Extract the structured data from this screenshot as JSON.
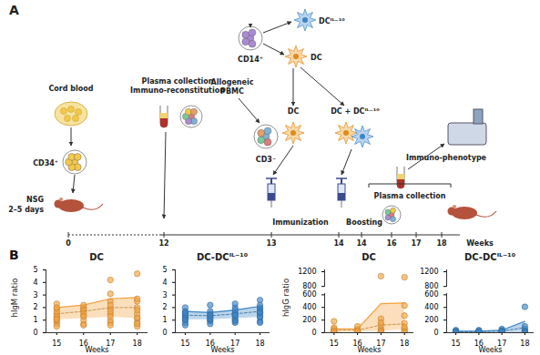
{
  "panel_a": {
    "label": "A",
    "labels": {
      "cord_blood": "Cord blood",
      "cd34": "CD34⁺",
      "nsg": "NSG",
      "days": "2–5 days",
      "plasma_collection": "Plasma collection",
      "immuno_reconstitution": "Immuno-reconstitution",
      "allogeneic": "Allogeneic",
      "pbmc": "PBMC",
      "cd14": "CD14⁺",
      "dc_il10": "DCᴵᴸ⁻¹⁰",
      "dc": "DC",
      "cd3": "CD3⁻",
      "dc_boost": "DC",
      "dc_dc_il10": "DC + DCᴵᴸ⁻¹⁰",
      "immunization": "Immunization",
      "boosting": "Boosting",
      "plasma_collection_2": "Plasma collection",
      "immuno_phenotype": "Immuno-phenotype"
    },
    "timeline": {
      "ticks": [
        0,
        12,
        13,
        14,
        14,
        16,
        17,
        18
      ],
      "label": "Weeks"
    }
  },
  "panel_b": {
    "label": "B"
  },
  "chart_data": [
    {
      "type": "scatter",
      "title": "DC",
      "xlabel": "Weeks",
      "ylabel": "hIgM ratio",
      "color": "#f4a340",
      "xlim": [
        14.6,
        18.4
      ],
      "xticks": [
        15,
        16,
        17,
        18
      ],
      "ylim": [
        0,
        5
      ],
      "yticks": [
        0,
        1,
        2,
        3,
        4,
        5
      ],
      "x": [
        15,
        15,
        15,
        15,
        15,
        15,
        15,
        15,
        15,
        15,
        15,
        15,
        16,
        16,
        16,
        16,
        16,
        16,
        16,
        16,
        16,
        16,
        17,
        17,
        17,
        17,
        17,
        17,
        17,
        17,
        17,
        17,
        17,
        18,
        18,
        18,
        18,
        18,
        18,
        18,
        18,
        18,
        18,
        18
      ],
      "values": [
        0.9,
        1.2,
        1.5,
        0.7,
        2.3,
        1.9,
        1.3,
        0.5,
        1.7,
        2.0,
        1.0,
        1.1,
        1.4,
        0.7,
        2.0,
        1.8,
        1.6,
        1.0,
        0.6,
        1.9,
        1.3,
        2.2,
        0.8,
        2.5,
        1.0,
        1.9,
        2.2,
        1.5,
        3.1,
        1.3,
        0.6,
        1.7,
        4.2,
        4.7,
        2.5,
        1.1,
        0.8,
        1.5,
        2.0,
        1.2,
        0.5,
        2.7,
        1.8,
        0.7
      ],
      "band": {
        "x": [
          15,
          16,
          17,
          18
        ],
        "lower": [
          1.1,
          1.2,
          1.3,
          1.2
        ],
        "center": [
          1.5,
          1.7,
          2.0,
          2.0
        ],
        "upper": [
          2.0,
          2.2,
          2.7,
          2.8
        ]
      }
    },
    {
      "type": "scatter",
      "title": "DC-DCᴵᴸ⁻¹⁰",
      "xlabel": "Weeks",
      "color": "#3d85c6",
      "xlim": [
        14.6,
        18.4
      ],
      "xticks": [
        15,
        16,
        17,
        18
      ],
      "ylim": [
        0,
        5
      ],
      "yticks": [
        0,
        1,
        2,
        3,
        4,
        5
      ],
      "x": [
        15,
        15,
        15,
        15,
        15,
        15,
        15,
        15,
        15,
        15,
        15,
        16,
        16,
        16,
        16,
        16,
        16,
        16,
        16,
        16,
        16,
        17,
        17,
        17,
        17,
        17,
        17,
        17,
        17,
        17,
        17,
        17,
        18,
        18,
        18,
        18,
        18,
        18,
        18,
        18,
        18,
        18,
        18
      ],
      "values": [
        1.2,
        1.5,
        1.0,
        0.8,
        1.7,
        1.3,
        2.0,
        1.1,
        0.6,
        1.4,
        1.6,
        1.3,
        1.0,
        0.9,
        1.5,
        1.2,
        1.7,
        2.2,
        0.7,
        1.1,
        1.4,
        1.6,
        1.0,
        1.3,
        2.0,
        0.8,
        1.5,
        1.1,
        1.8,
        2.3,
        0.9,
        1.4,
        1.5,
        2.6,
        1.2,
        1.9,
        0.9,
        2.0,
        1.7,
        1.3,
        2.2,
        0.8,
        1.6
      ],
      "band": {
        "x": [
          15,
          16,
          17,
          18
        ],
        "lower": [
          1.1,
          1.1,
          1.2,
          1.3
        ],
        "center": [
          1.4,
          1.35,
          1.5,
          1.7
        ],
        "upper": [
          1.7,
          1.6,
          1.8,
          2.1
        ]
      }
    },
    {
      "type": "scatter",
      "title": "DC",
      "xlabel": "Weeks",
      "ylabel": "hIgG ratio",
      "color": "#f4a340",
      "xlim": [
        14.6,
        18.4
      ],
      "xticks": [
        15,
        16,
        17,
        18
      ],
      "ylim": [
        0,
        1250
      ],
      "ybreak": [
        620,
        780
      ],
      "yticks": [
        0,
        200,
        400,
        600,
        800,
        1200
      ],
      "x": [
        15,
        15,
        15,
        15,
        15,
        15,
        15,
        15,
        15,
        16,
        16,
        16,
        16,
        16,
        16,
        16,
        17,
        17,
        17,
        17,
        17,
        17,
        17,
        17,
        18,
        18,
        18,
        18,
        18,
        18,
        18,
        18
      ],
      "values": [
        180,
        60,
        30,
        20,
        10,
        5,
        40,
        80,
        15,
        40,
        10,
        60,
        20,
        5,
        100,
        30,
        1080,
        20,
        60,
        120,
        30,
        10,
        220,
        160,
        1050,
        430,
        150,
        60,
        30,
        10,
        270,
        90
      ],
      "band": {
        "x": [
          15,
          16,
          17,
          18
        ],
        "lower": [
          20,
          20,
          40,
          60
        ],
        "center": [
          40,
          40,
          120,
          140
        ],
        "upper": [
          60,
          60,
          460,
          470
        ]
      }
    },
    {
      "type": "scatter",
      "title": "DC-DCᴵᴸ⁻¹⁰",
      "xlabel": "Weeks",
      "color": "#3d85c6",
      "xlim": [
        14.6,
        18.4
      ],
      "xticks": [
        15,
        16,
        17,
        18
      ],
      "ylim": [
        0,
        1250
      ],
      "ybreak": [
        620,
        780
      ],
      "yticks": [
        0,
        200,
        400,
        600,
        800,
        1200
      ],
      "x": [
        15,
        15,
        15,
        15,
        15,
        15,
        15,
        16,
        16,
        16,
        16,
        16,
        16,
        17,
        17,
        17,
        17,
        17,
        17,
        17,
        18,
        18,
        18,
        18,
        18,
        18,
        18
      ],
      "values": [
        10,
        30,
        5,
        20,
        40,
        0,
        15,
        20,
        5,
        10,
        30,
        40,
        15,
        10,
        40,
        20,
        60,
        5,
        30,
        15,
        410,
        30,
        10,
        60,
        100,
        20,
        5
      ],
      "band": {
        "x": [
          15,
          16,
          17,
          18
        ],
        "lower": [
          5,
          5,
          10,
          20
        ],
        "center": [
          15,
          15,
          25,
          80
        ],
        "upper": [
          25,
          25,
          40,
          180
        ]
      }
    }
  ]
}
